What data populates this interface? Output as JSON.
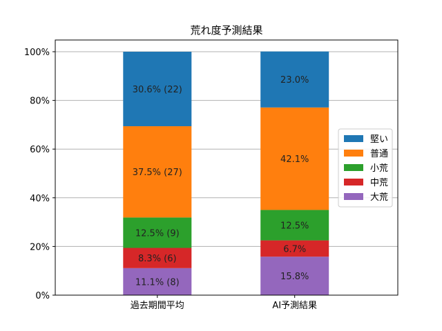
{
  "chart_data": {
    "type": "bar",
    "stacked": true,
    "title": "荒れ度予測結果",
    "xlabel": "",
    "ylabel": "",
    "ylim": [
      0,
      100
    ],
    "y_ticks": [
      "0%",
      "20%",
      "40%",
      "60%",
      "80%",
      "100%"
    ],
    "categories": [
      "過去期間平均",
      "AI予測結果"
    ],
    "grid": "horizontal",
    "legend_position": "right",
    "series": [
      {
        "name": "大荒",
        "color": "#9467bd",
        "values": [
          11.1,
          15.8
        ],
        "labels": [
          "11.1% (8)",
          "15.8%"
        ]
      },
      {
        "name": "中荒",
        "color": "#d62728",
        "values": [
          8.3,
          6.7
        ],
        "labels": [
          "8.3% (6)",
          "6.7%"
        ]
      },
      {
        "name": "小荒",
        "color": "#2ca02c",
        "values": [
          12.5,
          12.5
        ],
        "labels": [
          "12.5% (9)",
          "12.5%"
        ]
      },
      {
        "name": "普通",
        "color": "#ff7f0e",
        "values": [
          37.5,
          42.1
        ],
        "labels": [
          "37.5% (27)",
          "42.1%"
        ]
      },
      {
        "name": "堅い",
        "color": "#1f77b4",
        "values": [
          30.6,
          23.0
        ],
        "labels": [
          "30.6% (22)",
          "23.0%"
        ]
      }
    ],
    "legend_order": [
      "堅い",
      "普通",
      "小荒",
      "中荒",
      "大荒"
    ]
  }
}
